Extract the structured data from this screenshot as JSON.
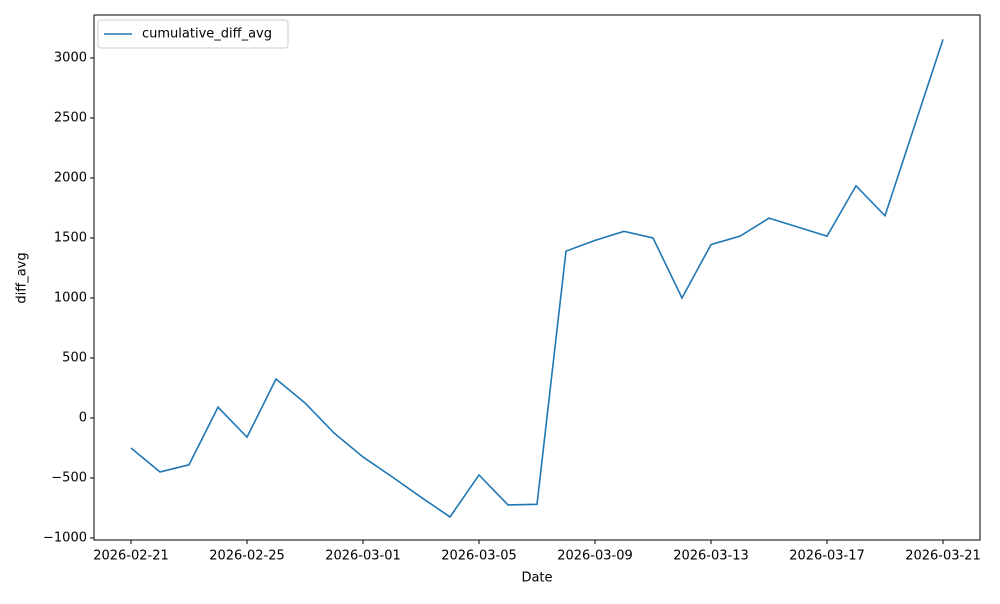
{
  "chart_data": {
    "type": "line",
    "x_label": "Date",
    "y_label": "diff_avg",
    "x": [
      "2026-02-21",
      "2026-02-22",
      "2026-02-23",
      "2026-02-24",
      "2026-02-25",
      "2026-02-26",
      "2026-02-27",
      "2026-02-28",
      "2026-03-01",
      "2026-03-02",
      "2026-03-03",
      "2026-03-04",
      "2026-03-05",
      "2026-03-06",
      "2026-03-07",
      "2026-03-08",
      "2026-03-09",
      "2026-03-10",
      "2026-03-11",
      "2026-03-12",
      "2026-03-13",
      "2026-03-14",
      "2026-03-15",
      "2026-03-16",
      "2026-03-17",
      "2026-03-18",
      "2026-03-19",
      "2026-03-20",
      "2026-03-21"
    ],
    "series": [
      {
        "name": "cumulative_diff_avg",
        "color": "#1f77b4",
        "values": [
          -250,
          -450,
          -390,
          90,
          -160,
          325,
          125,
          -125,
          -325,
          -490,
          -660,
          -825,
          -475,
          -725,
          -720,
          1390,
          1480,
          1555,
          1500,
          1000,
          1445,
          1515,
          1665,
          1590,
          1515,
          1935,
          1685,
          2420,
          3155
        ]
      }
    ],
    "xlim": [
      "2026-02-21",
      "2026-03-21"
    ],
    "xticks": [
      "2026-02-21",
      "2026-02-25",
      "2026-03-01",
      "2026-03-05",
      "2026-03-09",
      "2026-03-13",
      "2026-03-17",
      "2026-03-21"
    ],
    "ylim": [
      -1017,
      3358
    ],
    "yticks": [
      {
        "value": -1000,
        "label": "−1000"
      },
      {
        "value": -500,
        "label": "−500"
      },
      0,
      500,
      1000,
      1500,
      2000,
      2500,
      3000
    ],
    "legend": "upper left"
  }
}
